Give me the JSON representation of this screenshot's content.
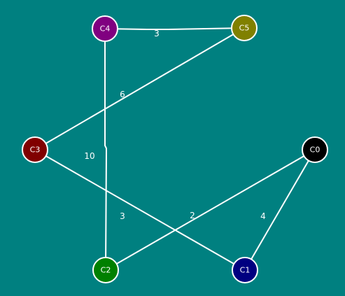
{
  "graph": {
    "background_color": "#008080",
    "nodes": [
      {
        "id": "C0",
        "label": "C0",
        "color": "#000000"
      },
      {
        "id": "C1",
        "label": "C1",
        "color": "#000080"
      },
      {
        "id": "C2",
        "label": "C2",
        "color": "#008000"
      },
      {
        "id": "C3",
        "label": "C3",
        "color": "#800000"
      },
      {
        "id": "C4",
        "label": "C4",
        "color": "#800080"
      },
      {
        "id": "C5",
        "label": "C5",
        "color": "#808000"
      }
    ],
    "edges": [
      {
        "from": "C4",
        "to": "C5",
        "weight": "3"
      },
      {
        "from": "C5",
        "to": "C3",
        "weight": "6"
      },
      {
        "from": "C4",
        "to": "C2",
        "weight": "10"
      },
      {
        "from": "C3",
        "to": "C1",
        "weight": "3"
      },
      {
        "from": "C0",
        "to": "C2",
        "weight": "2"
      },
      {
        "from": "C0",
        "to": "C1",
        "weight": "4"
      }
    ]
  }
}
